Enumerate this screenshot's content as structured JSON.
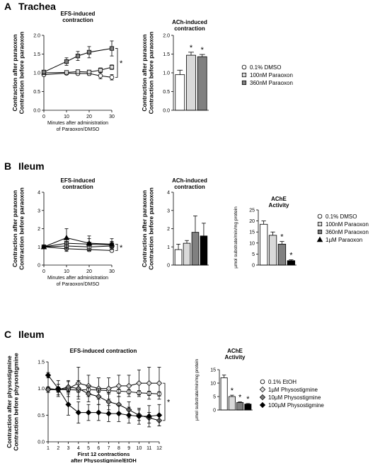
{
  "panels": {
    "A": {
      "letter": "A",
      "title": "Trachea"
    },
    "B": {
      "letter": "B",
      "title": "Ileum"
    },
    "C": {
      "letter": "C",
      "title": "Ileum"
    }
  },
  "chart_data": [
    {
      "id": "A_efs",
      "type": "line",
      "title": "EFS-induced contraction",
      "ylabel": "Contraction after paraoxon / Contraction before paraoxon",
      "xlabel": "Minutes after administration of Paraoxon/DMSO",
      "ylim": [
        0,
        2.0
      ],
      "yticks": [
        0,
        0.5,
        1.0,
        1.5,
        2.0
      ],
      "xlim": [
        0,
        30
      ],
      "xticks": [
        0,
        10,
        20,
        30
      ],
      "significance": "*",
      "series": [
        {
          "name": "0.1% DMSO",
          "marker": "circle",
          "fill": "#ffffff",
          "x": [
            0,
            10,
            15,
            20,
            25,
            30
          ],
          "y": [
            0.95,
            0.99,
            0.98,
            0.98,
            0.92,
            0.88
          ],
          "err": [
            0.03,
            0.04,
            0.04,
            0.05,
            0.08,
            0.07
          ]
        },
        {
          "name": "100nM Paraoxon",
          "marker": "square",
          "fill": "#d9d9d9",
          "x": [
            0,
            10,
            15,
            20,
            25,
            30
          ],
          "y": [
            1.0,
            1.01,
            1.03,
            1.02,
            1.07,
            1.15
          ],
          "err": [
            0.03,
            0.04,
            0.04,
            0.05,
            0.06,
            0.06
          ]
        },
        {
          "name": "360nM Paraoxon",
          "marker": "square",
          "fill": "#808080",
          "x": [
            0,
            10,
            15,
            20,
            30
          ],
          "y": [
            1.02,
            1.3,
            1.45,
            1.55,
            1.65
          ],
          "err": [
            0.04,
            0.1,
            0.12,
            0.15,
            0.2
          ]
        }
      ]
    },
    {
      "id": "A_ach",
      "type": "bar",
      "title": "ACh-induced contraction",
      "ylabel": "Contraction after paraoxon / Contraction before paraoxon",
      "ylim": [
        0,
        2.0
      ],
      "yticks": [
        0,
        0.5,
        1.0,
        1.5,
        2.0
      ],
      "values": [
        0.95,
        1.47,
        1.43
      ],
      "err": [
        0.12,
        0.08,
        0.06
      ],
      "colors": [
        "#ffffff",
        "#d9d9d9",
        "#808080"
      ],
      "stars": [
        "",
        "*",
        "*"
      ]
    },
    {
      "id": "B_efs",
      "type": "line",
      "title": "EFS-induced contraction",
      "ylabel": "Contraction after paraoxon / Contraction before paraoxon",
      "xlabel": "Minutes after administration of Paraoxon/DMSO",
      "ylim": [
        0,
        4
      ],
      "yticks": [
        0,
        1,
        2,
        3,
        4
      ],
      "xlim": [
        0,
        30
      ],
      "xticks": [
        0,
        10,
        20,
        30
      ],
      "significance": "*",
      "series": [
        {
          "name": "0.1% DMSO",
          "marker": "circle",
          "fill": "#ffffff",
          "x": [
            0,
            10,
            20,
            30
          ],
          "y": [
            1.0,
            0.9,
            0.85,
            0.8
          ],
          "err": [
            0.05,
            0.15,
            0.1,
            0.08
          ]
        },
        {
          "name": "100nM Paraoxon",
          "marker": "square",
          "fill": "#d9d9d9",
          "x": [
            0,
            10,
            20,
            30
          ],
          "y": [
            1.0,
            1.05,
            1.0,
            1.05
          ],
          "err": [
            0.05,
            0.2,
            0.2,
            0.2
          ]
        },
        {
          "name": "360nM Paraoxon",
          "marker": "square",
          "fill": "#808080",
          "x": [
            0,
            10,
            20,
            30
          ],
          "y": [
            1.0,
            1.2,
            1.15,
            1.1
          ],
          "err": [
            0.05,
            0.3,
            0.3,
            0.2
          ]
        },
        {
          "name": "1µM Paraoxon",
          "marker": "triangle",
          "fill": "#000000",
          "x": [
            0,
            10,
            20,
            30
          ],
          "y": [
            1.0,
            1.5,
            1.2,
            1.15
          ],
          "err": [
            0.05,
            0.5,
            0.4,
            0.3
          ]
        }
      ]
    },
    {
      "id": "B_ach",
      "type": "bar",
      "title": "ACh-induced contraction",
      "ylabel": "Contraction after paraoxon / Contraction before paraoxon",
      "ylim": [
        0,
        4
      ],
      "yticks": [
        0,
        1,
        2,
        3,
        4
      ],
      "values": [
        0.85,
        1.2,
        1.8,
        1.6
      ],
      "err": [
        0.3,
        0.15,
        0.9,
        0.7
      ],
      "colors": [
        "#ffffff",
        "#d9d9d9",
        "#808080",
        "#000000"
      ],
      "stars": [
        "",
        "",
        "",
        ""
      ]
    },
    {
      "id": "B_ache",
      "type": "bar",
      "title": "AChE Activity",
      "ylabel": "µmol substrate/min/mg protein",
      "ylim": [
        0,
        25
      ],
      "yticks": [
        0,
        5,
        10,
        15,
        20,
        25
      ],
      "values": [
        18.5,
        13.5,
        9.5,
        2.0
      ],
      "err": [
        1.5,
        1.5,
        1.2,
        0.4
      ],
      "colors": [
        "#ffffff",
        "#d9d9d9",
        "#808080",
        "#000000"
      ],
      "stars": [
        "",
        "",
        "*",
        "*"
      ]
    },
    {
      "id": "C_efs",
      "type": "line",
      "title": "EFS-induced contraction",
      "ylabel": "Contraction after physostigmine / Contraction before physostigmine",
      "xlabel": "First 12 contractions after Physostigmine/EtOH",
      "ylim": [
        0,
        1.5
      ],
      "yticks": [
        0,
        0.5,
        1.0,
        1.5
      ],
      "xlim": [
        1,
        12
      ],
      "xticks": [
        1,
        2,
        3,
        4,
        5,
        6,
        7,
        8,
        9,
        10,
        11,
        12
      ],
      "significance": "*",
      "series": [
        {
          "name": "0.1% EtOH",
          "marker": "circle",
          "fill": "#ffffff",
          "x": [
            1,
            2,
            3,
            4,
            5,
            6,
            7,
            8,
            9,
            10,
            11,
            12
          ],
          "y": [
            1.0,
            0.98,
            0.98,
            0.97,
            0.98,
            0.97,
            0.96,
            0.95,
            0.94,
            0.92,
            0.91,
            0.9
          ],
          "err": [
            0.03,
            0.04,
            0.04,
            0.04,
            0.04,
            0.04,
            0.04,
            0.04,
            0.04,
            0.04,
            0.04,
            0.04
          ]
        },
        {
          "name": "1µM Physostigmine",
          "marker": "diamond",
          "fill": "#d9d9d9",
          "x": [
            1,
            2,
            3,
            4,
            5,
            6,
            7,
            8,
            9,
            10,
            11,
            12
          ],
          "y": [
            0.98,
            0.98,
            1.0,
            1.1,
            1.05,
            1.0,
            1.0,
            1.05,
            1.05,
            1.1,
            1.1,
            1.1
          ],
          "err": [
            0.05,
            0.1,
            0.15,
            0.3,
            0.2,
            0.2,
            0.2,
            0.2,
            0.2,
            0.25,
            0.3,
            0.3
          ]
        },
        {
          "name": "10µM Physostigmine",
          "marker": "diamond",
          "fill": "#808080",
          "x": [
            1,
            2,
            3,
            4,
            5,
            6,
            7,
            8,
            9,
            10,
            11,
            12
          ],
          "y": [
            0.98,
            0.98,
            1.03,
            1.0,
            0.9,
            0.85,
            0.75,
            0.7,
            0.6,
            0.5,
            0.45,
            0.4
          ],
          "err": [
            0.05,
            0.05,
            0.1,
            0.15,
            0.15,
            0.15,
            0.15,
            0.15,
            0.15,
            0.1,
            0.1,
            0.1
          ]
        },
        {
          "name": "100µM Physostigmine",
          "marker": "diamond",
          "fill": "#000000",
          "x": [
            1,
            2,
            3,
            4,
            5,
            6,
            7,
            8,
            9,
            10,
            11,
            12
          ],
          "y": [
            1.25,
            1.0,
            0.7,
            0.55,
            0.55,
            0.55,
            0.53,
            0.53,
            0.5,
            0.48,
            0.48,
            0.5
          ],
          "err": [
            0.05,
            0.15,
            0.2,
            0.2,
            0.15,
            0.15,
            0.15,
            0.15,
            0.15,
            0.15,
            0.2,
            0.2
          ]
        }
      ]
    },
    {
      "id": "C_ache",
      "type": "bar",
      "title": "AChE Activity",
      "ylabel": "µmol substrate/min/mg protein",
      "ylim": [
        0,
        15
      ],
      "yticks": [
        0,
        5,
        10,
        15
      ],
      "values": [
        12.0,
        5.0,
        2.8,
        2.2
      ],
      "err": [
        1.0,
        0.5,
        0.2,
        0.2
      ],
      "colors": [
        "#ffffff",
        "#d9d9d9",
        "#808080",
        "#000000"
      ],
      "stars": [
        "",
        "*",
        "*",
        "*"
      ]
    }
  ],
  "legends": {
    "A": [
      {
        "label": "0.1% DMSO",
        "marker": "circle",
        "fill": "#ffffff"
      },
      {
        "label": "100nM Paraoxon",
        "marker": "square",
        "fill": "#d9d9d9"
      },
      {
        "label": "360nM Paraoxon",
        "marker": "square",
        "fill": "#808080"
      }
    ],
    "B": [
      {
        "label": "0.1% DMSO",
        "marker": "circle",
        "fill": "#ffffff"
      },
      {
        "label": "100nM Paraoxon",
        "marker": "square",
        "fill": "#d9d9d9"
      },
      {
        "label": "360nM Paraoxon",
        "marker": "square",
        "fill": "#808080"
      },
      {
        "label": "1µM Paraoxon",
        "marker": "triangle",
        "fill": "#000000"
      }
    ],
    "C": [
      {
        "label": "0.1% EtOH",
        "marker": "circle",
        "fill": "#ffffff"
      },
      {
        "label": "1µM Physostigmine",
        "marker": "diamond",
        "fill": "#d9d9d9"
      },
      {
        "label": "10µM Physostigmine",
        "marker": "diamond",
        "fill": "#808080"
      },
      {
        "label": "100µM Physostigmine",
        "marker": "diamond",
        "fill": "#000000"
      }
    ]
  }
}
